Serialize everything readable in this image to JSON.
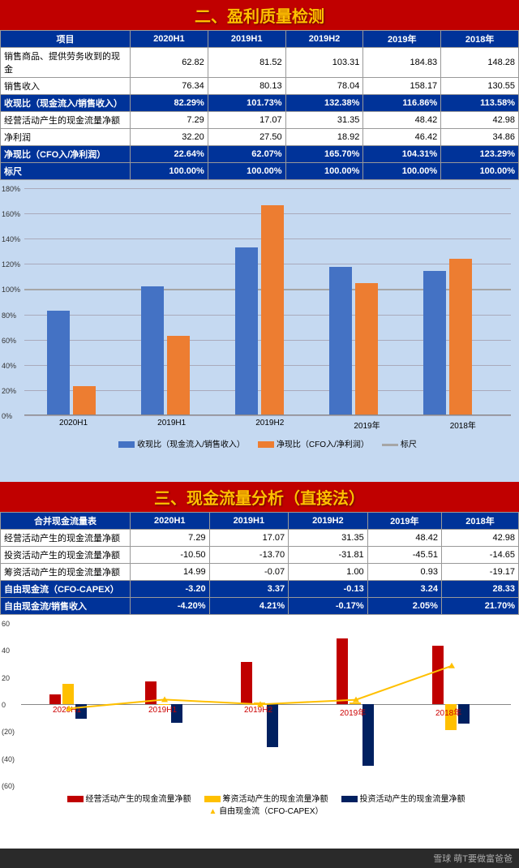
{
  "s1": {
    "title": "二、盈利质量检测",
    "cols": [
      "项目",
      "2020H1",
      "2019H1",
      "2019H2",
      "2019年",
      "2018年"
    ],
    "rows": [
      {
        "hl": false,
        "c": [
          "销售商品、提供劳务收到的现金",
          "62.82",
          "81.52",
          "103.31",
          "184.83",
          "148.28"
        ]
      },
      {
        "hl": false,
        "c": [
          "销售收入",
          "76.34",
          "80.13",
          "78.04",
          "158.17",
          "130.55"
        ]
      },
      {
        "hl": true,
        "c": [
          "收现比（现金流入/销售收入）",
          "82.29%",
          "101.73%",
          "132.38%",
          "116.86%",
          "113.58%"
        ]
      },
      {
        "hl": false,
        "c": [
          "经营活动产生的现金流量净额",
          "7.29",
          "17.07",
          "31.35",
          "48.42",
          "42.98"
        ]
      },
      {
        "hl": false,
        "c": [
          "净利润",
          "32.20",
          "27.50",
          "18.92",
          "46.42",
          "34.86"
        ]
      },
      {
        "hl": true,
        "c": [
          "净现比（CFO入/净利润）",
          "22.64%",
          "62.07%",
          "165.70%",
          "104.31%",
          "123.29%"
        ]
      },
      {
        "hl": true,
        "c": [
          "标尺",
          "100.00%",
          "100.00%",
          "100.00%",
          "100.00%",
          "100.00%"
        ]
      }
    ]
  },
  "c1": {
    "ymax": 180,
    "step": 20,
    "cats": [
      "2020H1",
      "2019H1",
      "2019H2",
      "2019年",
      "2018年"
    ],
    "s": [
      {
        "name": "收现比（现金流入/销售收入）",
        "color": "#4472c4",
        "v": [
          82.29,
          101.73,
          132.38,
          116.86,
          113.58
        ]
      },
      {
        "name": "净现比（CFO入/净利润）",
        "color": "#ed7d31",
        "v": [
          22.64,
          62.07,
          165.7,
          104.31,
          123.29
        ]
      }
    ],
    "ref": {
      "name": "标尺",
      "color": "#a6a6a6",
      "v": 100
    },
    "bg": "#c5d9f1"
  },
  "s2": {
    "title": "三、现金流量分析（直接法）",
    "cols": [
      "合并现金流量表",
      "2020H1",
      "2019H1",
      "2019H2",
      "2019年",
      "2018年"
    ],
    "rows": [
      {
        "hl": false,
        "c": [
          "经营活动产生的现金流量净额",
          "7.29",
          "17.07",
          "31.35",
          "48.42",
          "42.98"
        ]
      },
      {
        "hl": false,
        "c": [
          "投资活动产生的现金流量净额",
          "-10.50",
          "-13.70",
          "-31.81",
          "-45.51",
          "-14.65"
        ]
      },
      {
        "hl": false,
        "c": [
          "筹资活动产生的现金流量净额",
          "14.99",
          "-0.07",
          "1.00",
          "0.93",
          "-19.17"
        ]
      },
      {
        "hl": true,
        "c": [
          "自由现金流（CFO-CAPEX）",
          "-3.20",
          "3.37",
          "-0.13",
          "3.24",
          "28.33"
        ]
      },
      {
        "hl": true,
        "c": [
          "自由现金流/销售收入",
          "-4.20%",
          "4.21%",
          "-0.17%",
          "2.05%",
          "21.70%"
        ]
      }
    ]
  },
  "c2": {
    "ymin": -60,
    "ymax": 60,
    "step": 20,
    "cats": [
      "2020H1",
      "2019H1",
      "2019H2",
      "2019年",
      "2018年"
    ],
    "s": [
      {
        "name": "经营活动产生的现金流量净额",
        "color": "#c00000",
        "v": [
          7.29,
          17.07,
          31.35,
          48.42,
          42.98
        ]
      },
      {
        "name": "筹资活动产生的现金流量净额",
        "color": "#ffc000",
        "v": [
          14.99,
          -0.07,
          1.0,
          0.93,
          -19.17
        ]
      },
      {
        "name": "投资活动产生的现金流量净额",
        "color": "#002060",
        "v": [
          -10.5,
          -13.7,
          -31.81,
          -45.51,
          -14.65
        ]
      }
    ],
    "line": {
      "name": "自由现金流（CFO-CAPEX）",
      "color": "#ffc000",
      "v": [
        -3.2,
        3.37,
        -0.13,
        3.24,
        28.33
      ]
    }
  },
  "wm": "雪球  萌T要做富爸爸"
}
